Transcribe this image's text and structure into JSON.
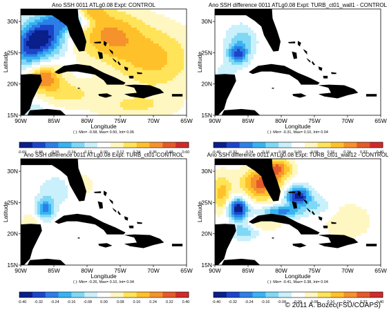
{
  "copyright": "© 2011 A. Bozec(FSU/COAPS)",
  "chart_data": [
    {
      "type": "heatmap",
      "title": "Ano SSH 0011 ATLg0.08 Expt: CONTROL",
      "xlabel": "Longitude",
      "ylabel": "Latitude",
      "xticks": [
        "90W",
        "85W",
        "80W",
        "75W",
        "70W",
        "65W"
      ],
      "yticks": [
        "15N",
        "20N",
        "25N",
        "30N"
      ],
      "xlim": [
        -90,
        -65
      ],
      "ylim": [
        15,
        32
      ],
      "stats": "( ): Min= -0.58, Max= 0.50, Int= 0.06",
      "colorbar": {
        "ticks": [
          "-0.60",
          "-0.48",
          "-0.36",
          "-0.24",
          "-0.12",
          "0.00",
          "0.12",
          "0.24",
          "0.36",
          "0.48",
          "0.60"
        ],
        "range": [
          -0.6,
          0.6
        ]
      },
      "field": "control"
    },
    {
      "type": "heatmap",
      "title": "Ano SSH difference 0011 ATLg0.08 Expt: TURB_ct01_wall1 - CONTROL",
      "xlabel": "Longitude",
      "ylabel": "Latitude",
      "xticks": [
        "90W",
        "85W",
        "80W",
        "75W",
        "70W",
        "65W"
      ],
      "yticks": [
        "15N",
        "20N",
        "25N",
        "30N"
      ],
      "xlim": [
        -90,
        -65
      ],
      "ylim": [
        15,
        32
      ],
      "stats": "( ): Min= -0.31, Max= 0.10, Int= 0.04",
      "colorbar": {
        "ticks": [
          "-0.40",
          "-0.32",
          "-0.24",
          "-0.16",
          "-0.08",
          "0.00",
          "0.08",
          "0.16",
          "0.24",
          "0.32",
          "0.40"
        ],
        "range": [
          -0.4,
          0.4
        ]
      },
      "field": "diff_wall1"
    },
    {
      "type": "heatmap",
      "title": "Ano SSH difference 0011 ATLg0.08 Expt: TURB_ct01-CONTROL",
      "xlabel": "Longitude",
      "ylabel": "Latitude",
      "xticks": [
        "90W",
        "85W",
        "80W",
        "75W",
        "70W",
        "65W"
      ],
      "yticks": [
        "15N",
        "20N",
        "25N",
        "30N"
      ],
      "xlim": [
        -90,
        -65
      ],
      "ylim": [
        15,
        32
      ],
      "stats": "( ): Min= -0.26, Max= 0.10, Int= 0.04",
      "colorbar": {
        "ticks": [
          "-0.40",
          "-0.32",
          "-0.24",
          "-0.16",
          "-0.08",
          "0.00",
          "0.08",
          "0.16",
          "0.24",
          "0.32",
          "0.40"
        ],
        "range": [
          -0.4,
          0.4
        ]
      },
      "field": "diff_ct01"
    },
    {
      "type": "heatmap",
      "title": "Ano SSH difference 0011 ATLg0.08 Expt: TURB_ct01_wall12 - CONTROL",
      "xlabel": "Longitude",
      "ylabel": "Latitude",
      "xticks": [
        "90W",
        "85W",
        "80W",
        "75W",
        "70W",
        "65W"
      ],
      "yticks": [
        "15N",
        "20N",
        "25N",
        "30N"
      ],
      "xlim": [
        -90,
        -65
      ],
      "ylim": [
        15,
        32
      ],
      "stats": "( ): Min= -0.41, Max= 0.38, Int= 0.04",
      "colorbar": {
        "ticks": [
          "-0.40",
          "-0.32",
          "-0.24",
          "-0.16",
          "-0.08",
          "0.00",
          "0.08",
          "0.16",
          "0.24",
          "0.32",
          "0.40"
        ],
        "range": [
          -0.4,
          0.4
        ]
      },
      "field": "diff_wall12"
    }
  ],
  "colormap": [
    "#0a1f8a",
    "#1c45c9",
    "#2d7fe6",
    "#37b3f2",
    "#7fd8f5",
    "#c9f0fb",
    "#ffffff",
    "#fff7c2",
    "#ffe45a",
    "#ffc12a",
    "#f5922c",
    "#e55a2a",
    "#d02b2b"
  ],
  "land_color": "#000000"
}
